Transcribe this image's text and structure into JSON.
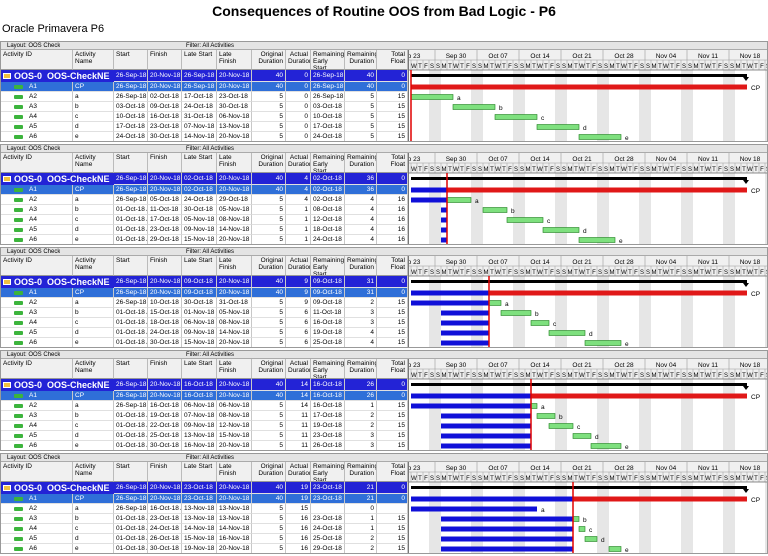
{
  "title": "Consequences of Routine OOS from Bad Logic - P6",
  "app_name": "Oracle Primavera P6",
  "columns": [
    "Activity ID",
    "Activity Name",
    "Start",
    "Finish",
    "Late Start",
    "Late Finish",
    "Original Duration",
    "Actual Duration",
    "Remaining Early Start",
    "Remaining Duration",
    "Total Float"
  ],
  "timescale": {
    "weeks": [
      "p 23",
      "Sep 30",
      "Oct 07",
      "Oct 14",
      "Oct 21",
      "Oct 28",
      "Nov 04",
      "Nov 11",
      "Nov 18"
    ],
    "days": [
      "S",
      "M",
      "T",
      "W",
      "T",
      "F",
      "S"
    ]
  },
  "panels": [
    {
      "layout": "Layout: OOS Check",
      "filter": "Filter: All Activities",
      "wbs": [
        "OOS-0",
        "OOS-CheckNE",
        "26-Sep-18",
        "20-Nov-18",
        "26-Sep-18",
        "20-Nov-18",
        40,
        0,
        "26-Sep-18",
        40,
        0
      ],
      "rows": [
        [
          "A1",
          "CP",
          "26-Sep-18",
          "20-Nov-18",
          "26-Sep-18",
          "20-Nov-18",
          40,
          0,
          "26-Sep-18",
          40,
          0
        ],
        [
          "A2",
          "a",
          "26-Sep-18",
          "02-Oct-18",
          "17-Oct-18",
          "23-Oct-18",
          5,
          0,
          "26-Sep-18",
          5,
          15
        ],
        [
          "A3",
          "b",
          "03-Oct-18",
          "09-Oct-18",
          "24-Oct-18",
          "30-Oct-18",
          5,
          0,
          "03-Oct-18",
          5,
          15
        ],
        [
          "A4",
          "c",
          "10-Oct-18",
          "16-Oct-18",
          "31-Oct-18",
          "06-Nov-18",
          5,
          0,
          "10-Oct-18",
          5,
          15
        ],
        [
          "A5",
          "d",
          "17-Oct-18",
          "23-Oct-18",
          "07-Nov-18",
          "13-Nov-18",
          5,
          0,
          "17-Oct-18",
          5,
          15
        ],
        [
          "A6",
          "e",
          "24-Oct-18",
          "30-Oct-18",
          "14-Nov-18",
          "20-Nov-18",
          5,
          0,
          "24-Oct-18",
          5,
          15
        ]
      ]
    },
    {
      "layout": "Layout: OOS Check",
      "filter": "Filter: All Activities",
      "wbs": [
        "OOS-0",
        "OOS-CheckNE",
        "26-Sep-18",
        "20-Nov-18",
        "02-Oct-18",
        "20-Nov-18",
        40,
        4,
        "02-Oct-18",
        36,
        0
      ],
      "rows": [
        [
          "A1",
          "CP",
          "26-Sep-18 A",
          "20-Nov-18",
          "02-Oct-18",
          "20-Nov-18",
          40,
          4,
          "02-Oct-18",
          36,
          0
        ],
        [
          "A2",
          "a",
          "26-Sep-18 A",
          "05-Oct-18",
          "24-Oct-18",
          "29-Oct-18",
          5,
          4,
          "02-Oct-18",
          4,
          16
        ],
        [
          "A3",
          "b",
          "01-Oct-18 A",
          "11-Oct-18",
          "30-Oct-18",
          "05-Nov-18",
          5,
          1,
          "08-Oct-18",
          4,
          16
        ],
        [
          "A4",
          "c",
          "01-Oct-18 A",
          "17-Oct-18",
          "05-Nov-18",
          "08-Nov-18",
          5,
          1,
          "12-Oct-18",
          4,
          16
        ],
        [
          "A5",
          "d",
          "01-Oct-18 A",
          "23-Oct-18",
          "09-Nov-18",
          "14-Nov-18",
          5,
          1,
          "18-Oct-18",
          4,
          16
        ],
        [
          "A6",
          "e",
          "01-Oct-18 A",
          "29-Oct-18",
          "15-Nov-18",
          "20-Nov-18",
          5,
          1,
          "24-Oct-18",
          4,
          16
        ]
      ]
    },
    {
      "layout": "Layout: OOS Check",
      "filter": "Filter: All Activities",
      "wbs": [
        "OOS-0",
        "OOS-CheckNE",
        "26-Sep-18",
        "20-Nov-18",
        "09-Oct-18",
        "20-Nov-18",
        40,
        9,
        "09-Oct-18",
        31,
        0
      ],
      "rows": [
        [
          "A1",
          "CP",
          "26-Sep-18 A",
          "20-Nov-18",
          "09-Oct-18",
          "20-Nov-18",
          40,
          9,
          "09-Oct-18",
          31,
          0
        ],
        [
          "A2",
          "a",
          "26-Sep-18 A",
          "10-Oct-18",
          "30-Oct-18",
          "31-Oct-18",
          5,
          9,
          "09-Oct-18",
          2,
          15
        ],
        [
          "A3",
          "b",
          "01-Oct-18 A",
          "15-Oct-18",
          "01-Nov-18",
          "05-Nov-18",
          5,
          6,
          "11-Oct-18",
          3,
          15
        ],
        [
          "A4",
          "c",
          "01-Oct-18 A",
          "18-Oct-18",
          "06-Nov-18",
          "08-Nov-18",
          5,
          6,
          "16-Oct-18",
          3,
          15
        ],
        [
          "A5",
          "d",
          "01-Oct-18 A",
          "24-Oct-18",
          "09-Nov-18",
          "14-Nov-18",
          5,
          6,
          "19-Oct-18",
          4,
          15
        ],
        [
          "A6",
          "e",
          "01-Oct-18 A",
          "30-Oct-18",
          "15-Nov-18",
          "20-Nov-18",
          5,
          6,
          "25-Oct-18",
          4,
          15
        ]
      ]
    },
    {
      "layout": "Layout: OOS Check",
      "filter": "Filter: All Activities",
      "wbs": [
        "OOS-0",
        "OOS-CheckNE",
        "26-Sep-18",
        "20-Nov-18",
        "16-Oct-18",
        "20-Nov-18",
        40,
        14,
        "16-Oct-18",
        26,
        0
      ],
      "rows": [
        [
          "A1",
          "CP",
          "26-Sep-18 A",
          "20-Nov-18",
          "16-Oct-18",
          "20-Nov-18",
          40,
          14,
          "16-Oct-18",
          26,
          0
        ],
        [
          "A2",
          "a",
          "26-Sep-18 A",
          "16-Oct-18",
          "06-Nov-18",
          "06-Nov-18",
          5,
          14,
          "16-Oct-18",
          1,
          15
        ],
        [
          "A3",
          "b",
          "01-Oct-18 A",
          "19-Oct-18",
          "07-Nov-18",
          "08-Nov-18",
          5,
          11,
          "17-Oct-18",
          2,
          15
        ],
        [
          "A4",
          "c",
          "01-Oct-18 A",
          "22-Oct-18",
          "09-Nov-18",
          "12-Nov-18",
          5,
          11,
          "19-Oct-18",
          2,
          15
        ],
        [
          "A5",
          "d",
          "01-Oct-18 A",
          "25-Oct-18",
          "13-Nov-18",
          "15-Nov-18",
          5,
          11,
          "23-Oct-18",
          3,
          15
        ],
        [
          "A6",
          "e",
          "01-Oct-18 A",
          "30-Oct-18",
          "16-Nov-18",
          "20-Nov-18",
          5,
          11,
          "26-Oct-18",
          3,
          15
        ]
      ]
    },
    {
      "layout": "Layout: OOS Check",
      "filter": "Filter: All Activities",
      "wbs": [
        "OOS-0",
        "OOS-CheckNE",
        "26-Sep-18",
        "20-Nov-18",
        "23-Oct-18",
        "20-Nov-18",
        40,
        19,
        "23-Oct-18",
        21,
        0
      ],
      "rows": [
        [
          "A1",
          "CP",
          "26-Sep-18 A",
          "20-Nov-18",
          "23-Oct-18",
          "20-Nov-18",
          40,
          19,
          "23-Oct-18",
          21,
          0
        ],
        [
          "A2",
          "a",
          "26-Sep-18 A",
          "16-Oct-18 A",
          "13-Nov-18",
          "13-Nov-18",
          5,
          15,
          null,
          0,
          null
        ],
        [
          "A3",
          "b",
          "01-Oct-18 A",
          "23-Oct-18",
          "13-Nov-18",
          "13-Nov-18",
          5,
          16,
          "23-Oct-18",
          1,
          15
        ],
        [
          "A4",
          "c",
          "01-Oct-18 A",
          "24-Oct-18",
          "14-Nov-18",
          "14-Nov-18",
          5,
          16,
          "24-Oct-18",
          1,
          15
        ],
        [
          "A5",
          "d",
          "01-Oct-18 A",
          "26-Oct-18",
          "15-Nov-18",
          "16-Nov-18",
          5,
          16,
          "25-Oct-18",
          2,
          15
        ],
        [
          "A6",
          "e",
          "01-Oct-18 A",
          "30-Oct-18",
          "19-Nov-18",
          "20-Nov-18",
          5,
          16,
          "29-Oct-18",
          2,
          15
        ]
      ]
    }
  ]
}
